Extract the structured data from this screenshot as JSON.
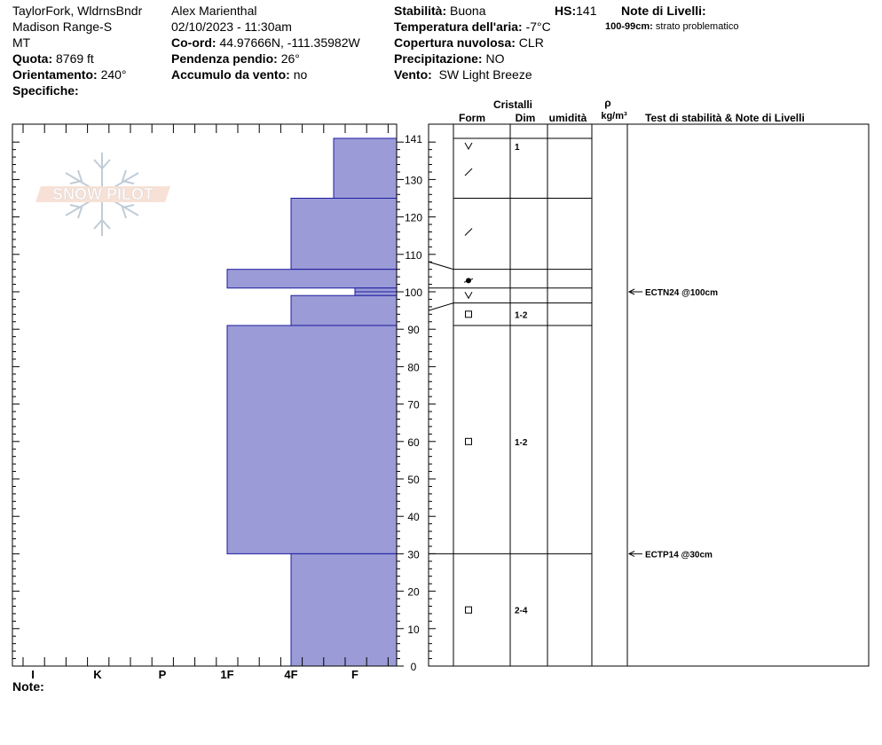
{
  "header": {
    "location_line1": "TaylorFork, WldrnsBndr",
    "location_line2": "Madison Range-S",
    "location_line3": "MT",
    "elevation_label": "Quota:",
    "elevation_value": "8769 ft",
    "aspect_label": "Orientamento:",
    "aspect_value": "240°",
    "specifics_label": "Specifiche:",
    "observer": "Alex Marienthal",
    "datetime": "02/10/2023 - 11:30am",
    "coord_label": "Co-ord:",
    "coord_value": "44.97666N, -111.35982W",
    "slope_label": "Pendenza pendio:",
    "slope_value": "26°",
    "wind_loading_label": "Accumulo da vento:",
    "wind_loading_value": "no",
    "stability_label": "Stabilità:",
    "stability_value": "Buona",
    "hs_label": "HS:",
    "hs_value": "141",
    "air_temp_label": "Temperatura dell'aria:",
    "air_temp_value": "-7°C",
    "cloud_label": "Copertura nuvolosa:",
    "cloud_value": "CLR",
    "precip_label": "Precipitazione:",
    "precip_value": "NO",
    "wind_label": "Vento:",
    "wind_value": "SW Light Breeze",
    "layer_notes_label": "Note di Livelli:",
    "layer_note_range": "100-99cm:",
    "layer_note_text": "strato problematico"
  },
  "columns": {
    "crystals": "Cristalli",
    "form": "Form",
    "dim": "Dim",
    "humidity": "umidità",
    "rho": "ρ",
    "density_unit": "kg/m³",
    "tests": "Test di stabilità & Note di Livelli"
  },
  "notes_label": "Note:",
  "watermark": "SNOW PILOT",
  "colors": {
    "hardness_fill": "#9b9bd7",
    "hardness_stroke": "#1c1ca0"
  },
  "chart_data": {
    "type": "snow-profile",
    "y_axis": {
      "min": 0,
      "max": 141,
      "ticks": [
        0,
        10,
        20,
        30,
        40,
        50,
        60,
        70,
        80,
        90,
        100,
        110,
        120,
        130,
        141
      ],
      "unit": "cm"
    },
    "x_axis": {
      "categories": [
        "I",
        "K",
        "P",
        "1F",
        "4F",
        "F"
      ],
      "direction": "reversed"
    },
    "hardness_layers": [
      {
        "top": 141,
        "bottom": 125,
        "hardness": "F+"
      },
      {
        "top": 125,
        "bottom": 106,
        "hardness": "4F"
      },
      {
        "top": 106,
        "bottom": 101,
        "hardness": "1F"
      },
      {
        "top": 101,
        "bottom": 100,
        "hardness": "F"
      },
      {
        "top": 100,
        "bottom": 99,
        "hardness": "F"
      },
      {
        "top": 99,
        "bottom": 91,
        "hardness": "4F"
      },
      {
        "top": 91,
        "bottom": 30,
        "hardness": "1F"
      },
      {
        "top": 30,
        "bottom": 0,
        "hardness": "4F"
      }
    ],
    "layer_boundaries": [
      141,
      125,
      106,
      101,
      97,
      91,
      30
    ],
    "crystals": [
      {
        "height": 141,
        "form": "V",
        "dim": "1"
      },
      {
        "height": 132,
        "form": "/",
        "dim": ""
      },
      {
        "height": 116,
        "form": "/",
        "dim": ""
      },
      {
        "height": 103,
        "form": "●",
        "dim": ""
      },
      {
        "height": 99,
        "form": "V",
        "dim": ""
      },
      {
        "height": 94,
        "form": "□",
        "dim": "1-2"
      },
      {
        "height": 60,
        "form": "□",
        "dim": "1-2"
      },
      {
        "height": 15,
        "form": "□",
        "dim": "2-4"
      }
    ],
    "stability_tests": [
      {
        "height": 100,
        "label": "ECTN24 @100cm"
      },
      {
        "height": 30,
        "label": "ECTP14 @30cm"
      }
    ]
  }
}
